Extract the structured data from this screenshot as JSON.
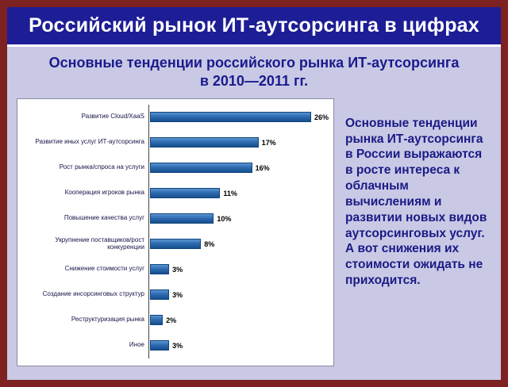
{
  "header": {
    "title": "Российский рынок ИТ-аутсорсинга в цифрах"
  },
  "subtitle": {
    "line1": "Основные тенденции российского рынка ИТ-аутсорсинга",
    "line2": "в 2010—2011 гг."
  },
  "chart_data": {
    "type": "bar",
    "orientation": "horizontal",
    "title": "",
    "xlabel": "",
    "ylabel": "",
    "xlim": [
      0,
      28
    ],
    "categories": [
      "Развитие Cloud/XaaS",
      "Развитие иных услуг ИТ-аутсорсинга",
      "Рост рынка/спроса на услуги",
      "Кооперация игроков рынка",
      "Повышение качества услуг",
      "Укрупнение поставщиков/рост конкуренции",
      "Снижение стоимости услуг",
      "Создание инсорсинговых структур",
      "Реструктуризация рынка",
      "Иное"
    ],
    "values": [
      26,
      17,
      16,
      11,
      10,
      8,
      3,
      3,
      2,
      3
    ],
    "value_labels": [
      "26%",
      "17%",
      "16%",
      "11%",
      "10%",
      "8%",
      "3%",
      "3%",
      "2%",
      "3%"
    ],
    "bar_color": "#2e6cb0",
    "grid": false,
    "legend": false
  },
  "commentary": {
    "text": "Основные тенденции рынка ИТ-аутсорсинга в России выражаются в росте интереса к облачным вычислениям и развитии новых видов аутсорсинговых услуг. А вот снижения их стоимости ожидать не приходится."
  },
  "colors": {
    "frame_border": "#7e2121",
    "background": "#c9c9e6",
    "header_bg": "#1d1d96",
    "header_text": "#ffffff",
    "title_text": "#1a1a8c",
    "bar_gradient_top": "#5b94d0",
    "bar_gradient_bottom": "#174f8e"
  }
}
